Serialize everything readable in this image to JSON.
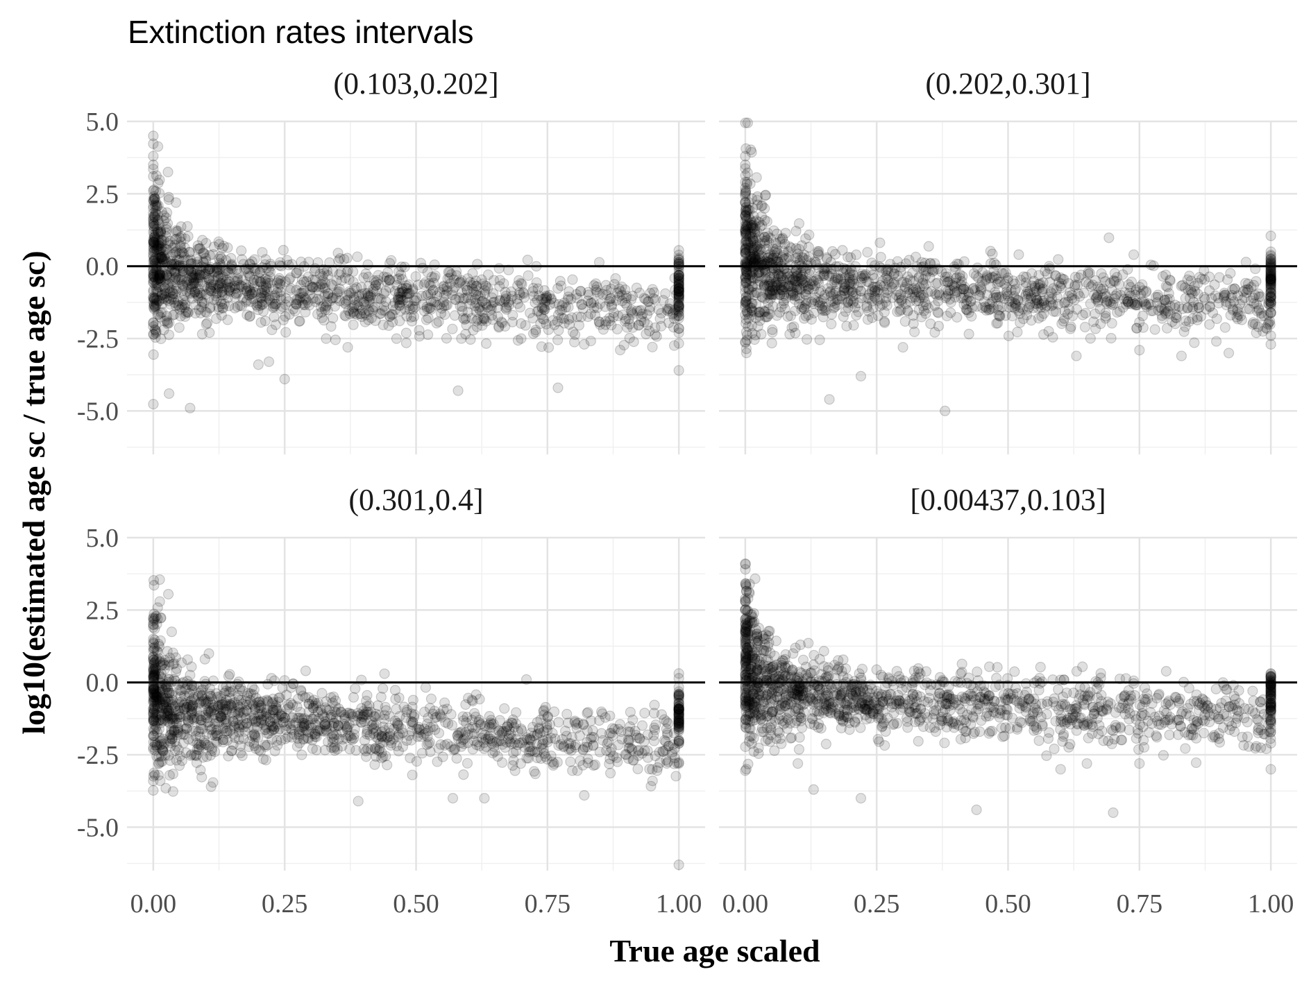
{
  "chart_data": {
    "type": "scatter",
    "title": "Extinction rates intervals",
    "xlabel": "True age scaled",
    "ylabel": "log10(estimated age sc / true age sc)",
    "xlim": [
      -0.05,
      1.05
    ],
    "ylim": [
      -6.5,
      5.0
    ],
    "x_ticks": [
      0.0,
      0.25,
      0.5,
      0.75,
      1.0
    ],
    "x_tick_labels": [
      "0.00",
      "0.25",
      "0.50",
      "0.75",
      "1.00"
    ],
    "y_ticks": [
      5.0,
      2.5,
      0.0,
      -2.5,
      -5.0
    ],
    "y_tick_labels": [
      "5.0",
      "2.5",
      "0.0",
      "-2.5",
      "-5.0"
    ],
    "reference_line_y": 0.0,
    "grid": true,
    "point_color": "#000000",
    "point_alpha": 0.15,
    "panels": [
      {
        "label": "(0.103,0.202]",
        "trend": {
          "start": 0.4,
          "decay": 2.6,
          "mid": -0.6,
          "slope": -1.0
        },
        "points": [
          [
            0.0,
            4.5
          ],
          [
            0.0,
            3.8
          ],
          [
            0.0,
            3.5
          ],
          [
            0.0,
            3.1
          ],
          [
            0.0,
            2.6
          ],
          [
            0.0,
            2.3
          ],
          [
            0.0,
            2.0
          ],
          [
            0.02,
            -2.2
          ],
          [
            0.03,
            -4.4
          ],
          [
            0.07,
            -4.9
          ],
          [
            0.2,
            -3.4
          ],
          [
            0.22,
            -3.3
          ],
          [
            0.25,
            -3.9
          ],
          [
            0.58,
            -4.3
          ],
          [
            0.77,
            -4.2
          ],
          [
            1.0,
            -3.6
          ],
          [
            1.0,
            -0.5
          ],
          [
            1.0,
            -0.8
          ],
          [
            1.0,
            -1.1
          ],
          [
            1.0,
            -1.4
          ],
          [
            1.0,
            -1.6
          ],
          [
            1.0,
            -1.8
          ],
          [
            1.0,
            -2.3
          ],
          [
            0.95,
            -0.8
          ],
          [
            0.9,
            -1.1
          ],
          [
            0.85,
            -1.3
          ],
          [
            0.82,
            -2.7
          ],
          [
            0.7,
            -2.5
          ],
          [
            0.63,
            -1.8
          ],
          [
            0.45,
            0.1
          ],
          [
            0.37,
            -2.8
          ]
        ]
      },
      {
        "label": "(0.202,0.301]",
        "trend": {
          "start": 0.45,
          "decay": 2.4,
          "mid": -0.5,
          "slope": -0.9
        },
        "points": [
          [
            0.0,
            3.8
          ],
          [
            0.0,
            3.5
          ],
          [
            0.0,
            2.9
          ],
          [
            0.0,
            2.5
          ],
          [
            0.0,
            2.2
          ],
          [
            0.16,
            -4.6
          ],
          [
            0.38,
            -5.0
          ],
          [
            0.22,
            -3.8
          ],
          [
            0.3,
            -2.8
          ],
          [
            0.63,
            -3.1
          ],
          [
            0.75,
            -2.9
          ],
          [
            0.83,
            -3.1
          ],
          [
            0.92,
            -3.0
          ],
          [
            1.0,
            -0.5
          ],
          [
            1.0,
            -0.9
          ],
          [
            1.0,
            -1.1
          ],
          [
            1.0,
            -1.6
          ],
          [
            1.0,
            -2.4
          ],
          [
            1.0,
            -2.7
          ],
          [
            0.97,
            -1.0
          ],
          [
            0.9,
            -1.1
          ],
          [
            0.8,
            -0.3
          ],
          [
            0.6,
            -0.4
          ],
          [
            0.4,
            -0.1
          ]
        ]
      },
      {
        "label": "(0.301,0.4]",
        "trend": {
          "start": 0.3,
          "decay": 3.0,
          "mid": -1.1,
          "slope": -1.0
        },
        "points": [
          [
            0.0,
            2.2
          ],
          [
            0.0,
            1.9
          ],
          [
            0.0,
            1.5
          ],
          [
            0.0,
            -3.4
          ],
          [
            0.11,
            -3.6
          ],
          [
            0.39,
            -4.1
          ],
          [
            0.57,
            -4.0
          ],
          [
            0.63,
            -4.0
          ],
          [
            0.82,
            -3.9
          ],
          [
            0.95,
            -3.4
          ],
          [
            1.0,
            -6.3
          ],
          [
            1.0,
            -1.1
          ],
          [
            1.0,
            -1.5
          ],
          [
            1.0,
            -2.1
          ],
          [
            1.0,
            -2.8
          ],
          [
            0.71,
            0.1
          ],
          [
            0.44,
            0.3
          ],
          [
            0.29,
            0.4
          ],
          [
            0.98,
            -2.2
          ],
          [
            0.9,
            -2.5
          ]
        ]
      },
      {
        "label": "[0.00437,0.103]",
        "trend": {
          "start": 0.5,
          "decay": 2.8,
          "mid": -0.4,
          "slope": -0.9
        },
        "points": [
          [
            0.0,
            4.1
          ],
          [
            0.0,
            2.8
          ],
          [
            0.0,
            2.5
          ],
          [
            0.0,
            2.0
          ],
          [
            0.1,
            -2.8
          ],
          [
            0.13,
            -3.7
          ],
          [
            0.22,
            -4.0
          ],
          [
            0.44,
            -4.4
          ],
          [
            0.7,
            -4.5
          ],
          [
            0.6,
            -3.0
          ],
          [
            0.65,
            -2.8
          ],
          [
            0.75,
            -2.8
          ],
          [
            1.0,
            -0.4
          ],
          [
            1.0,
            -0.7
          ],
          [
            1.0,
            -1.0
          ],
          [
            1.0,
            -1.3
          ],
          [
            1.0,
            -1.6
          ],
          [
            1.0,
            -2.1
          ],
          [
            1.0,
            -3.0
          ],
          [
            0.95,
            -0.9
          ],
          [
            0.87,
            -1.3
          ],
          [
            0.88,
            -0.8
          ],
          [
            0.41,
            0.3
          ]
        ]
      }
    ]
  }
}
